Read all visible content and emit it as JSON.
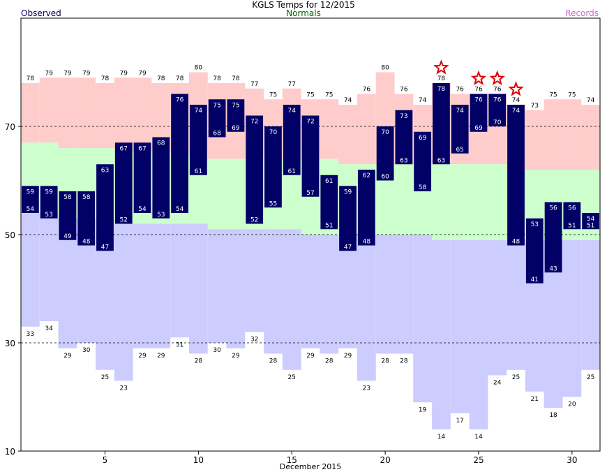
{
  "header": {
    "title": "KGLS Temps for 12/2015",
    "left_legend": "Observed",
    "center_legend": "Normals",
    "right_legend": "Records"
  },
  "colors": {
    "observed": "#000066",
    "normals": "#ccffcc",
    "record_high": "#ffcccc",
    "record_low": "#ccccff",
    "normals_text": "#006600",
    "records_text": "#cc66cc",
    "star": "#dd0000"
  },
  "chart_data": {
    "type": "bar",
    "title": "KGLS Temps for 12/2015",
    "xlabel": "December 2015",
    "ylabel": "",
    "xlim": [
      0.5,
      31.5
    ],
    "ylim": [
      10,
      90
    ],
    "xticks": [
      5,
      10,
      15,
      20,
      25,
      30
    ],
    "yticks": [
      10,
      30,
      50,
      70
    ],
    "dashed_gridlines": [
      30,
      50,
      70
    ],
    "days": [
      1,
      2,
      3,
      4,
      5,
      6,
      7,
      8,
      9,
      10,
      11,
      12,
      13,
      14,
      15,
      16,
      17,
      18,
      19,
      20,
      21,
      22,
      23,
      24,
      25,
      26,
      27,
      28,
      29,
      30,
      31
    ],
    "observed_high": [
      59,
      59,
      58,
      58,
      63,
      67,
      67,
      68,
      76,
      74,
      75,
      75,
      72,
      70,
      74,
      72,
      61,
      59,
      62,
      70,
      73,
      69,
      78,
      74,
      76,
      76,
      74,
      53,
      56,
      56,
      54
    ],
    "observed_low": [
      54,
      53,
      49,
      48,
      47,
      52,
      54,
      53,
      54,
      61,
      68,
      69,
      52,
      55,
      61,
      57,
      51,
      47,
      48,
      60,
      63,
      58,
      63,
      65,
      69,
      70,
      48,
      41,
      43,
      51,
      51
    ],
    "normal_high": [
      67,
      67,
      66,
      66,
      66,
      65,
      65,
      65,
      65,
      64,
      64,
      64,
      64,
      64,
      64,
      64,
      64,
      63,
      63,
      63,
      63,
      63,
      63,
      63,
      63,
      63,
      62,
      62,
      62,
      62,
      62
    ],
    "normal_low": [
      54,
      54,
      53,
      53,
      53,
      52,
      52,
      52,
      52,
      52,
      51,
      51,
      51,
      51,
      51,
      50,
      50,
      50,
      50,
      50,
      50,
      50,
      49,
      49,
      49,
      49,
      49,
      49,
      49,
      49,
      49
    ],
    "record_high": [
      78,
      79,
      79,
      79,
      78,
      79,
      79,
      78,
      78,
      80,
      78,
      78,
      77,
      75,
      77,
      75,
      75,
      74,
      76,
      80,
      76,
      74,
      78,
      76,
      76,
      76,
      74,
      73,
      75,
      75,
      74
    ],
    "record_low": [
      33,
      34,
      29,
      30,
      25,
      23,
      29,
      29,
      31,
      28,
      30,
      29,
      32,
      28,
      25,
      29,
      28,
      29,
      23,
      28,
      28,
      19,
      14,
      17,
      14,
      24,
      25,
      21,
      18,
      20,
      25
    ],
    "record_high_set_days": [
      23,
      25,
      26,
      27
    ]
  }
}
